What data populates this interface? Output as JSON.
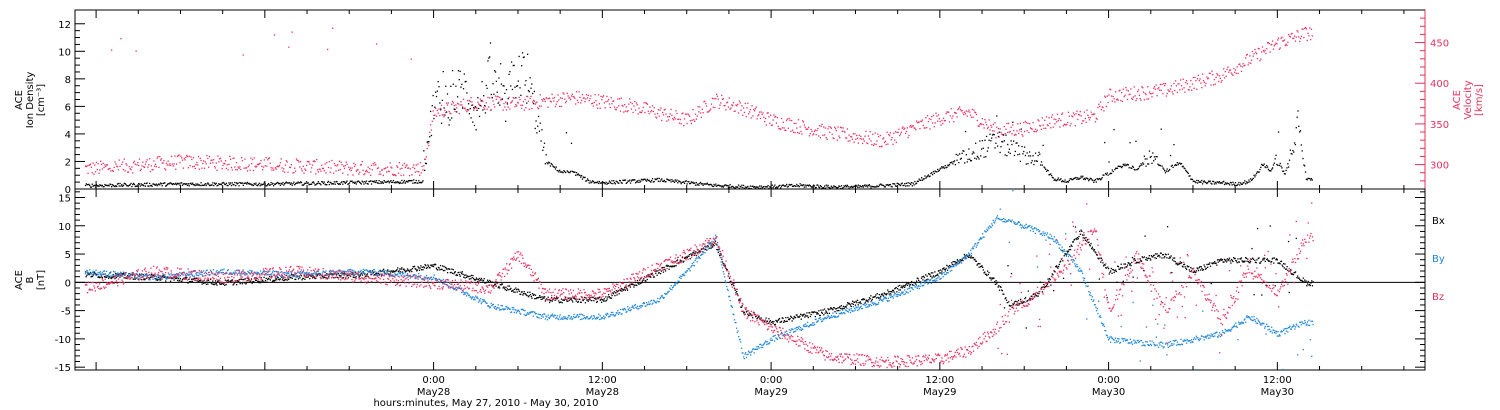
{
  "chart_data": [
    {
      "type": "scatter",
      "panel": "top",
      "ylabel": [
        "ACE",
        "Ion Density",
        "[cm⁻³]"
      ],
      "y2label": [
        "ACE",
        "Velocity",
        "[km/s]"
      ],
      "ylim": [
        0,
        13
      ],
      "y2lim": [
        270,
        490
      ],
      "yticks": [
        0,
        2,
        4,
        6,
        8,
        10,
        12
      ],
      "y2ticks": [
        300,
        350,
        400,
        450
      ],
      "colors": {
        "density": "#000000",
        "velocity": "#e8305e"
      },
      "series": [
        {
          "name": "",
          "axis": "left",
          "x": [
            -24,
            -18,
            -12,
            -6,
            -0.8,
            0,
            1,
            2,
            3,
            4,
            5,
            6,
            7,
            8,
            9,
            10,
            11,
            12,
            14,
            16,
            18,
            20,
            22,
            24,
            26,
            28,
            30,
            32,
            34,
            36,
            38,
            40,
            41,
            42,
            43,
            44,
            45,
            46,
            47,
            48,
            49,
            50,
            51,
            52,
            53,
            54,
            55,
            56,
            57,
            58,
            59,
            59.5,
            60,
            60.5,
            61,
            61.5,
            62
          ],
          "y": [
            0.3,
            0.4,
            0.4,
            0.5,
            0.6,
            6.5,
            6.0,
            7.5,
            5.5,
            8.0,
            6.0,
            9.0,
            6.5,
            2.0,
            1.3,
            1.2,
            0.6,
            0.5,
            0.6,
            0.7,
            0.5,
            0.3,
            0.2,
            0.2,
            0.3,
            0.2,
            0.2,
            0.3,
            0.4,
            1.5,
            2.5,
            3.5,
            3.0,
            2.5,
            2.2,
            0.8,
            0.6,
            0.9,
            0.6,
            1.2,
            1.8,
            1.5,
            2.5,
            1.3,
            2.0,
            0.6,
            0.5,
            0.5,
            0.4,
            0.6,
            1.8,
            1.4,
            2.4,
            1.0,
            3.0,
            5.5,
            0.8
          ]
        },
        {
          "name": "",
          "axis": "right",
          "x": [
            -24,
            -18,
            -12,
            -6,
            -0.8,
            0,
            3,
            6,
            10,
            14,
            18,
            20,
            22,
            24,
            28,
            32,
            34,
            36,
            38,
            40,
            42,
            44,
            46,
            47,
            48,
            52,
            56,
            60,
            62
          ],
          "y": [
            296,
            304,
            301,
            296,
            296,
            365,
            377,
            375,
            383,
            373,
            355,
            380,
            370,
            355,
            340,
            330,
            345,
            358,
            365,
            342,
            345,
            355,
            358,
            360,
            385,
            392,
            410,
            450,
            462
          ]
        }
      ]
    },
    {
      "type": "scatter",
      "panel": "bottom",
      "ylabel": [
        "ACE",
        "B",
        "[nT]"
      ],
      "xlabel": "hours:minutes, May 27, 2010 - May 30, 2010",
      "ylim": [
        -15.5,
        16.5
      ],
      "yticks": [
        -15,
        -10,
        -5,
        0,
        5,
        10,
        15
      ],
      "xlim": [
        -25.5,
        70.5
      ],
      "xticks": [
        0,
        12,
        24,
        36,
        48,
        60
      ],
      "xtick_labels": [
        "0:00",
        "12:00",
        "0:00",
        "12:00",
        "0:00",
        "12:00"
      ],
      "xtick_dates": [
        "May28",
        "May28",
        "May29",
        "May29",
        "May30",
        "May30"
      ],
      "colors": {
        "Bx": "#000000",
        "By": "#1f86d8",
        "Bz": "#e8305e"
      },
      "series": [
        {
          "name": "Bx",
          "x": [
            -25,
            -20,
            -15,
            -10,
            -5,
            0,
            4,
            8,
            12,
            16,
            20,
            22,
            24,
            28,
            32,
            36,
            38,
            40,
            41,
            43,
            46,
            48,
            50,
            52,
            54,
            56,
            58,
            60,
            62
          ],
          "y": [
            1.5,
            1.0,
            0.0,
            1.0,
            1.5,
            3.0,
            0.0,
            -3.0,
            -3.0,
            2.0,
            7.0,
            -5.0,
            -7.0,
            -5.0,
            -2.0,
            2.0,
            5.0,
            0.0,
            -4.0,
            -2.0,
            9.0,
            2.0,
            4.0,
            5.0,
            2.0,
            4.0,
            4.0,
            4.0,
            0.0
          ]
        },
        {
          "name": "By",
          "x": [
            -25,
            -20,
            -15,
            -10,
            -5,
            0,
            4,
            8,
            12,
            16,
            18,
            20,
            22,
            24,
            28,
            32,
            36,
            38,
            40,
            42,
            44,
            46,
            48,
            52,
            56,
            58,
            60,
            62
          ],
          "y": [
            2.0,
            1.0,
            2.0,
            1.5,
            2.0,
            1.0,
            -4.0,
            -6.0,
            -6.0,
            -3.0,
            2.0,
            8.0,
            -13.0,
            -10.0,
            -6.0,
            -3.0,
            1.0,
            5.0,
            11.5,
            10.0,
            8.0,
            2.0,
            -10.0,
            -11.0,
            -9.0,
            -6.0,
            -9.0,
            -7.0
          ]
        },
        {
          "name": "Bz",
          "x": [
            -25,
            -20,
            -15,
            -10,
            -5,
            0,
            4,
            6,
            8,
            12,
            16,
            18,
            20,
            22,
            24,
            28,
            32,
            36,
            38,
            40,
            41,
            43,
            45,
            47,
            48,
            50,
            52,
            54,
            56,
            58,
            60,
            62
          ],
          "y": [
            -1.0,
            2.0,
            1.0,
            2.0,
            1.0,
            0.0,
            -1.0,
            5.0,
            -2.0,
            -2.0,
            3.0,
            5.0,
            8.0,
            -5.0,
            -8.0,
            -13.0,
            -14.0,
            -13.5,
            -12.0,
            -8.0,
            -5.0,
            -2.0,
            3.0,
            10.0,
            -5.0,
            5.0,
            -5.0,
            2.0,
            -7.0,
            3.0,
            -2.0,
            8.0
          ]
        }
      ]
    }
  ]
}
